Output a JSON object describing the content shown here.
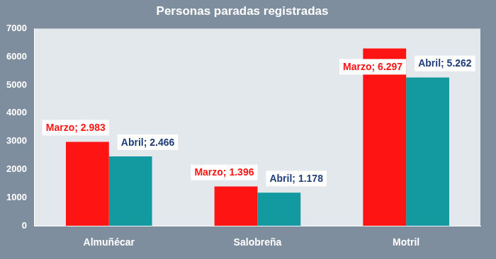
{
  "chart_data": {
    "type": "bar",
    "title": "Personas paradas registradas",
    "categories": [
      "Almuñécar",
      "Salobreña",
      "Motril"
    ],
    "series": [
      {
        "name": "Marzo",
        "color": "#ff1414",
        "values": [
          2983,
          1396,
          6297
        ],
        "value_labels": [
          "Marzo; 2.983",
          "Marzo; 1.396",
          "Marzo; 6.297"
        ]
      },
      {
        "name": "Abril",
        "color": "#139aa0",
        "values": [
          2466,
          1178,
          5262
        ],
        "value_labels": [
          "Abril; 2.466",
          "Abril; 1.178",
          "Abril; 5.262"
        ]
      }
    ],
    "ylim": [
      0,
      7000
    ],
    "yticks": [
      0,
      1000,
      2000,
      3000,
      4000,
      5000,
      6000,
      7000
    ],
    "grid": false,
    "data_labels": true
  }
}
